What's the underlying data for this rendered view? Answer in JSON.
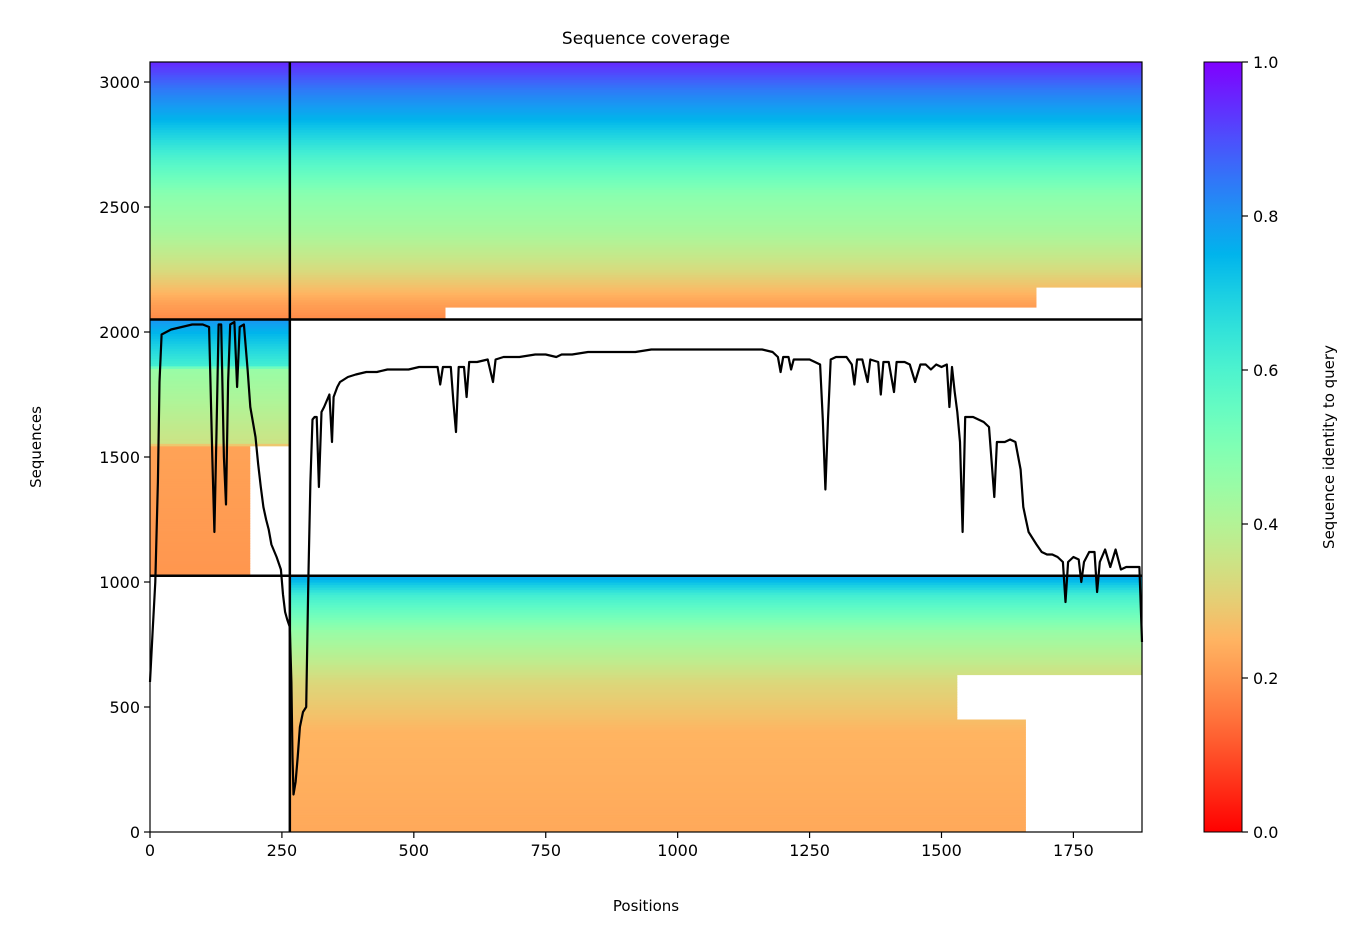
{
  "chart_data": {
    "type": "heatmap",
    "title": "Sequence coverage",
    "xlabel": "Positions",
    "ylabel": "Sequences",
    "xlim": [
      0,
      1880
    ],
    "ylim": [
      0,
      3080
    ],
    "x_ticks": [
      0,
      250,
      500,
      750,
      1000,
      1250,
      1500,
      1750
    ],
    "y_ticks": [
      0,
      500,
      1000,
      1500,
      2000,
      2500,
      3000
    ],
    "colorbar": {
      "label": "Sequence identity to query",
      "range": [
        0,
        1
      ],
      "ticks": [
        0.0,
        0.2,
        0.4,
        0.6,
        0.8,
        1.0
      ],
      "tick_labels": [
        "0.0",
        "0.2",
        "0.4",
        "0.6",
        "0.8",
        "1.0"
      ],
      "colormap": "rainbow_r"
    },
    "separators": {
      "vertical_x": [
        265
      ],
      "horizontal_y": [
        1025,
        2050
      ]
    },
    "blocks": [
      {
        "name": "top",
        "y_range": [
          2050,
          3080
        ],
        "segments": [
          {
            "x_start": 0,
            "x_end": 265,
            "rows": [
              {
                "y0": 2050,
                "y1": 2690,
                "x_end": 265
              },
              {
                "y0": 2690,
                "y1": 3080,
                "x_end": 265
              }
            ]
          },
          {
            "x_start": 265,
            "x_end": 1880
          }
        ],
        "identity_profile": [
          {
            "y": 2050,
            "v": 0.18
          },
          {
            "y": 2120,
            "v": 0.22
          },
          {
            "y": 2250,
            "v": 0.33
          },
          {
            "y": 2400,
            "v": 0.42
          },
          {
            "y": 2550,
            "v": 0.48
          },
          {
            "y": 2700,
            "v": 0.6
          },
          {
            "y": 2850,
            "v": 0.75
          },
          {
            "y": 2980,
            "v": 0.85
          },
          {
            "y": 3080,
            "v": 0.95
          }
        ],
        "row_extent": [
          {
            "y": 2050,
            "x": 560
          },
          {
            "y": 2100,
            "x": 1680
          },
          {
            "y": 2180,
            "x": 1880
          },
          {
            "y": 3080,
            "x": 1880
          }
        ]
      },
      {
        "name": "middle",
        "y_range": [
          1025,
          2050
        ],
        "x_range": [
          0,
          265
        ],
        "identity_profile": [
          {
            "y": 1025,
            "v": 0.2
          },
          {
            "y": 1540,
            "v": 0.22
          },
          {
            "y": 1560,
            "v": 0.35
          },
          {
            "y": 1850,
            "v": 0.45
          },
          {
            "y": 1870,
            "v": 0.62
          },
          {
            "y": 2050,
            "v": 0.8
          }
        ],
        "row_extent": [
          {
            "y": 1025,
            "x": 190
          },
          {
            "y": 1540,
            "x": 265
          },
          {
            "y": 2050,
            "x": 265
          }
        ]
      },
      {
        "name": "bottom",
        "y_range": [
          0,
          1025
        ],
        "x_range": [
          265,
          1880
        ],
        "identity_profile": [
          {
            "y": 0,
            "v": 0.23
          },
          {
            "y": 400,
            "v": 0.25
          },
          {
            "y": 600,
            "v": 0.32
          },
          {
            "y": 800,
            "v": 0.45
          },
          {
            "y": 950,
            "v": 0.62
          },
          {
            "y": 1025,
            "v": 0.78
          }
        ],
        "row_extent": [
          {
            "y": 0,
            "x": 1660
          },
          {
            "y": 440,
            "x": 1660
          },
          {
            "y": 450,
            "x": 1530
          },
          {
            "y": 620,
            "x": 1530
          },
          {
            "y": 630,
            "x": 1880
          },
          {
            "y": 1025,
            "x": 1880
          }
        ]
      }
    ],
    "coverage_line": {
      "color": "#000000",
      "points": [
        [
          0,
          600
        ],
        [
          5,
          800
        ],
        [
          10,
          1000
        ],
        [
          15,
          1400
        ],
        [
          18,
          1800
        ],
        [
          22,
          1990
        ],
        [
          40,
          2010
        ],
        [
          60,
          2020
        ],
        [
          80,
          2030
        ],
        [
          100,
          2030
        ],
        [
          112,
          2020
        ],
        [
          118,
          1500
        ],
        [
          122,
          1200
        ],
        [
          126,
          1600
        ],
        [
          130,
          2030
        ],
        [
          135,
          2030
        ],
        [
          140,
          1500
        ],
        [
          144,
          1310
        ],
        [
          148,
          1800
        ],
        [
          152,
          2030
        ],
        [
          160,
          2040
        ],
        [
          165,
          1780
        ],
        [
          170,
          2020
        ],
        [
          178,
          2030
        ],
        [
          185,
          1850
        ],
        [
          190,
          1700
        ],
        [
          200,
          1580
        ],
        [
          205,
          1470
        ],
        [
          210,
          1380
        ],
        [
          215,
          1300
        ],
        [
          220,
          1250
        ],
        [
          225,
          1210
        ],
        [
          230,
          1150
        ],
        [
          240,
          1100
        ],
        [
          248,
          1050
        ],
        [
          252,
          950
        ],
        [
          256,
          880
        ],
        [
          260,
          850
        ],
        [
          265,
          820
        ],
        [
          268,
          600
        ],
        [
          270,
          300
        ],
        [
          272,
          150
        ],
        [
          276,
          200
        ],
        [
          280,
          300
        ],
        [
          284,
          420
        ],
        [
          290,
          480
        ],
        [
          296,
          500
        ],
        [
          300,
          1000
        ],
        [
          304,
          1400
        ],
        [
          308,
          1650
        ],
        [
          312,
          1660
        ],
        [
          316,
          1660
        ],
        [
          320,
          1380
        ],
        [
          325,
          1680
        ],
        [
          330,
          1700
        ],
        [
          340,
          1750
        ],
        [
          345,
          1560
        ],
        [
          348,
          1740
        ],
        [
          355,
          1780
        ],
        [
          360,
          1800
        ],
        [
          375,
          1820
        ],
        [
          390,
          1830
        ],
        [
          410,
          1840
        ],
        [
          430,
          1840
        ],
        [
          450,
          1850
        ],
        [
          470,
          1850
        ],
        [
          490,
          1850
        ],
        [
          510,
          1860
        ],
        [
          530,
          1860
        ],
        [
          545,
          1860
        ],
        [
          550,
          1790
        ],
        [
          555,
          1860
        ],
        [
          570,
          1860
        ],
        [
          575,
          1720
        ],
        [
          580,
          1600
        ],
        [
          585,
          1860
        ],
        [
          595,
          1860
        ],
        [
          600,
          1740
        ],
        [
          605,
          1880
        ],
        [
          620,
          1880
        ],
        [
          640,
          1890
        ],
        [
          650,
          1800
        ],
        [
          655,
          1890
        ],
        [
          670,
          1900
        ],
        [
          700,
          1900
        ],
        [
          730,
          1910
        ],
        [
          750,
          1910
        ],
        [
          770,
          1900
        ],
        [
          780,
          1910
        ],
        [
          800,
          1910
        ],
        [
          830,
          1920
        ],
        [
          860,
          1920
        ],
        [
          890,
          1920
        ],
        [
          920,
          1920
        ],
        [
          950,
          1930
        ],
        [
          980,
          1930
        ],
        [
          1010,
          1930
        ],
        [
          1040,
          1930
        ],
        [
          1070,
          1930
        ],
        [
          1100,
          1930
        ],
        [
          1130,
          1930
        ],
        [
          1160,
          1930
        ],
        [
          1180,
          1920
        ],
        [
          1190,
          1900
        ],
        [
          1195,
          1840
        ],
        [
          1200,
          1900
        ],
        [
          1210,
          1900
        ],
        [
          1215,
          1850
        ],
        [
          1220,
          1890
        ],
        [
          1240,
          1890
        ],
        [
          1250,
          1890
        ],
        [
          1260,
          1880
        ],
        [
          1270,
          1870
        ],
        [
          1275,
          1650
        ],
        [
          1280,
          1370
        ],
        [
          1285,
          1650
        ],
        [
          1290,
          1890
        ],
        [
          1300,
          1900
        ],
        [
          1320,
          1900
        ],
        [
          1330,
          1870
        ],
        [
          1335,
          1790
        ],
        [
          1340,
          1890
        ],
        [
          1350,
          1890
        ],
        [
          1360,
          1800
        ],
        [
          1365,
          1890
        ],
        [
          1380,
          1880
        ],
        [
          1385,
          1750
        ],
        [
          1390,
          1880
        ],
        [
          1400,
          1880
        ],
        [
          1410,
          1760
        ],
        [
          1415,
          1880
        ],
        [
          1430,
          1880
        ],
        [
          1440,
          1870
        ],
        [
          1450,
          1800
        ],
        [
          1460,
          1870
        ],
        [
          1470,
          1870
        ],
        [
          1480,
          1850
        ],
        [
          1490,
          1870
        ],
        [
          1500,
          1860
        ],
        [
          1510,
          1870
        ],
        [
          1515,
          1700
        ],
        [
          1520,
          1860
        ],
        [
          1525,
          1760
        ],
        [
          1530,
          1680
        ],
        [
          1535,
          1560
        ],
        [
          1540,
          1200
        ],
        [
          1545,
          1660
        ],
        [
          1560,
          1660
        ],
        [
          1570,
          1650
        ],
        [
          1580,
          1640
        ],
        [
          1590,
          1620
        ],
        [
          1600,
          1340
        ],
        [
          1605,
          1560
        ],
        [
          1620,
          1560
        ],
        [
          1630,
          1570
        ],
        [
          1640,
          1560
        ],
        [
          1650,
          1450
        ],
        [
          1655,
          1300
        ],
        [
          1660,
          1250
        ],
        [
          1665,
          1200
        ],
        [
          1680,
          1150
        ],
        [
          1690,
          1120
        ],
        [
          1700,
          1110
        ],
        [
          1710,
          1110
        ],
        [
          1720,
          1100
        ],
        [
          1730,
          1080
        ],
        [
          1735,
          920
        ],
        [
          1740,
          1080
        ],
        [
          1750,
          1100
        ],
        [
          1760,
          1090
        ],
        [
          1765,
          1000
        ],
        [
          1770,
          1080
        ],
        [
          1780,
          1120
        ],
        [
          1790,
          1120
        ],
        [
          1795,
          960
        ],
        [
          1800,
          1080
        ],
        [
          1810,
          1130
        ],
        [
          1820,
          1060
        ],
        [
          1830,
          1130
        ],
        [
          1840,
          1050
        ],
        [
          1850,
          1060
        ],
        [
          1860,
          1060
        ],
        [
          1870,
          1060
        ],
        [
          1875,
          1060
        ],
        [
          1880,
          760
        ]
      ]
    }
  }
}
